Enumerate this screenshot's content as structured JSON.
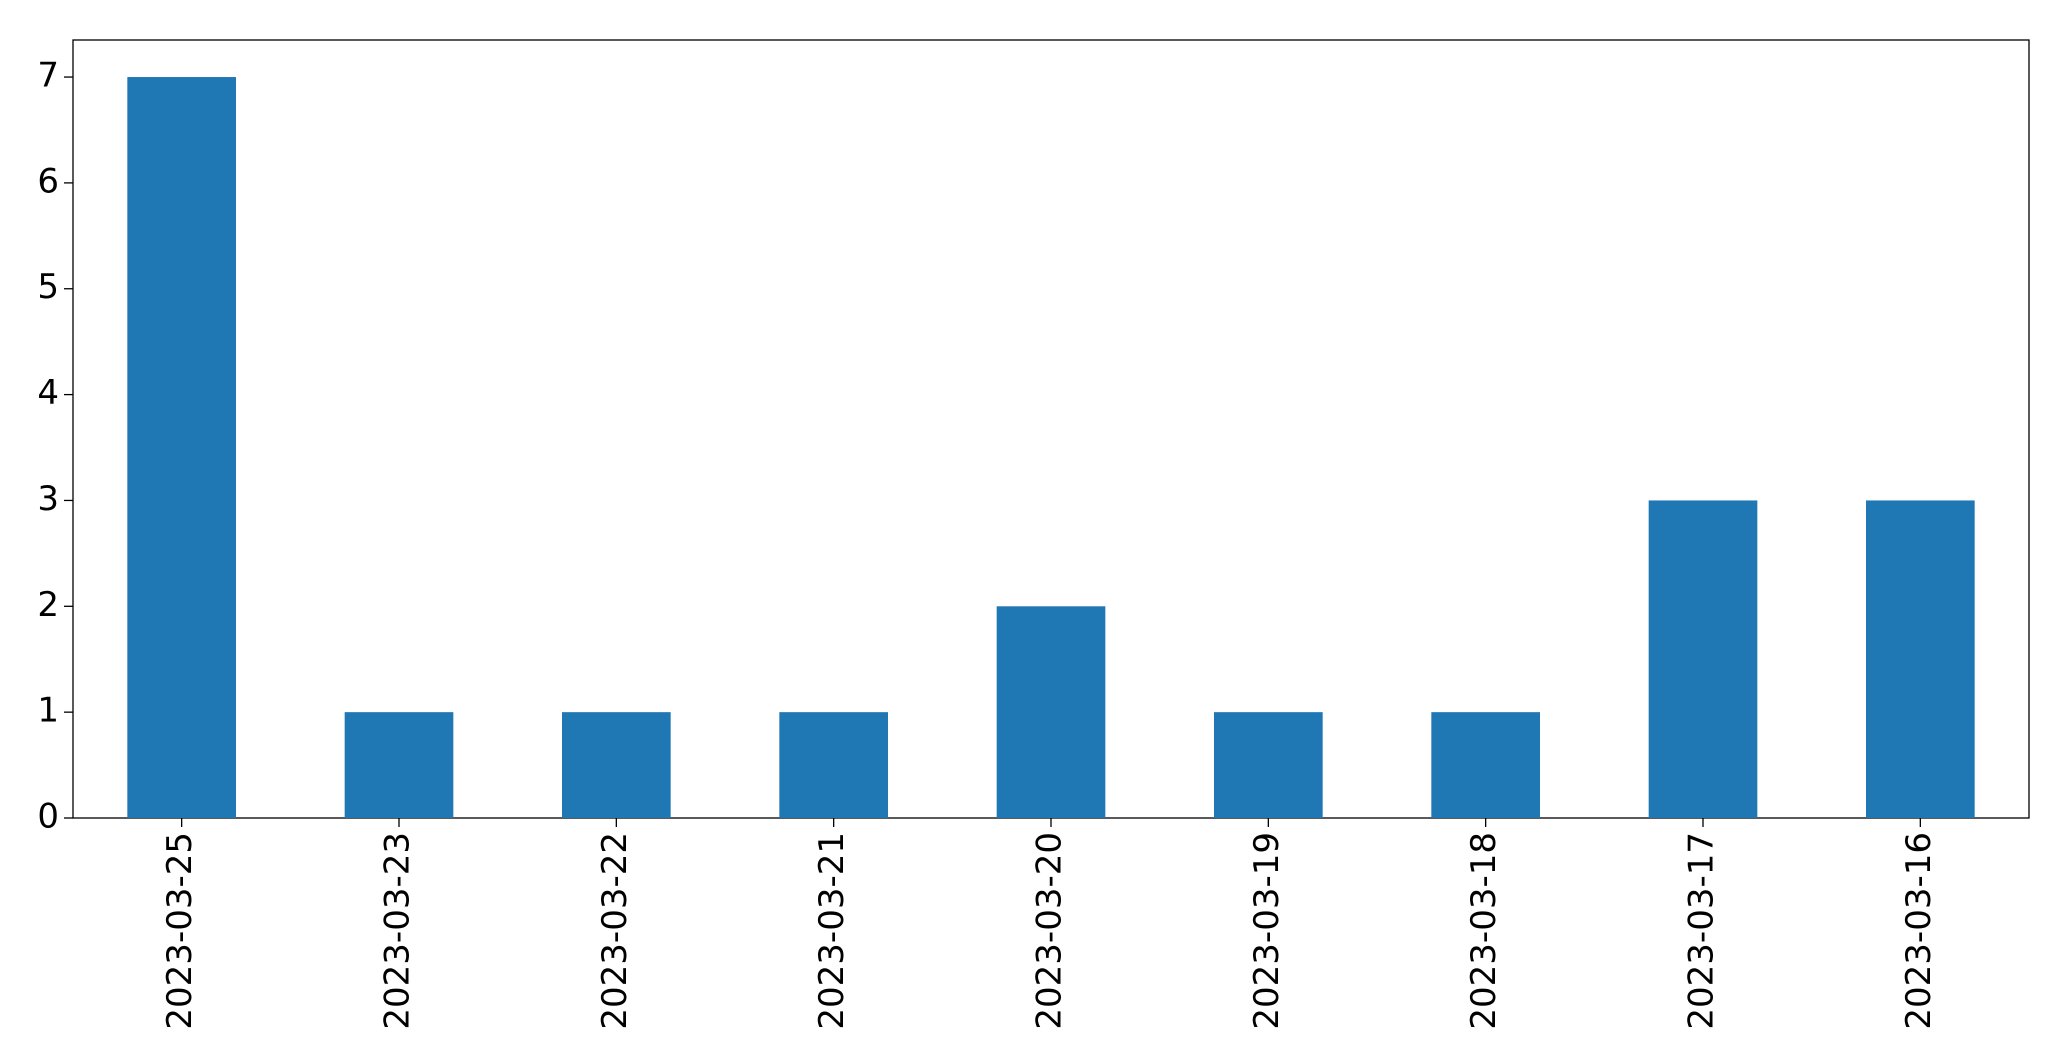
{
  "chart_data": {
    "type": "bar",
    "categories": [
      "2023-03-25",
      "2023-03-23",
      "2023-03-22",
      "2023-03-21",
      "2023-03-20",
      "2023-03-19",
      "2023-03-18",
      "2023-03-17",
      "2023-03-16"
    ],
    "values": [
      7,
      1,
      1,
      1,
      2,
      1,
      1,
      3,
      3
    ],
    "color": "#1f77b4",
    "ylim": [
      0,
      7.35
    ],
    "yticks": [
      0,
      1,
      2,
      3,
      4,
      5,
      6,
      7
    ],
    "grid": false
  }
}
